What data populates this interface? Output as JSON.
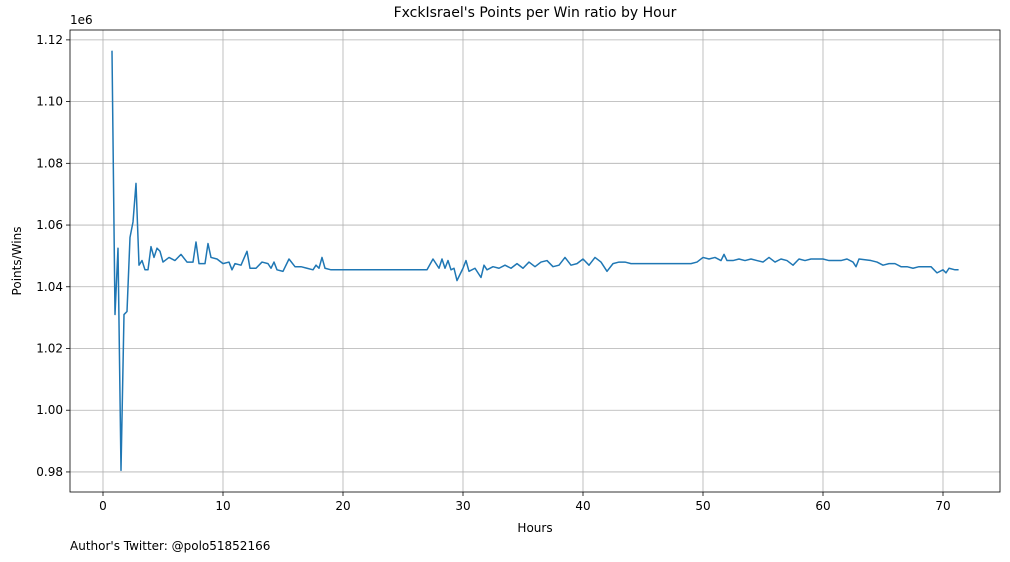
{
  "chart_data": {
    "type": "line",
    "title": "FxckIsrael's Points per Win ratio by Hour",
    "xlabel": "Hours",
    "ylabel": "Points/Wins",
    "y_axis_offset": "1e6",
    "footnote": "Author's Twitter: @polo51852166",
    "grid": true,
    "xlim": [
      -2.75,
      74.75
    ],
    "xticks": [
      0,
      10,
      20,
      30,
      40,
      50,
      60,
      70
    ],
    "ylim": [
      0.9735,
      1.1232
    ],
    "yticks": [
      0.98,
      {
        "value": 1,
        "label": "1.00"
      },
      1.02,
      1.04,
      1.06,
      1.08,
      {
        "value": 1.1,
        "label": "1.10"
      },
      1.12
    ],
    "x": [
      0.75,
      1.0,
      1.25,
      1.5,
      1.75,
      2.0,
      2.25,
      2.5,
      2.75,
      3.0,
      3.25,
      3.5,
      3.75,
      4.0,
      4.25,
      4.5,
      4.75,
      5.0,
      5.5,
      6.0,
      6.5,
      7.0,
      7.5,
      7.75,
      8.0,
      8.5,
      8.75,
      9.0,
      9.5,
      10.0,
      10.5,
      10.75,
      11.0,
      11.5,
      12.0,
      12.25,
      12.75,
      13.25,
      13.75,
      14.0,
      14.25,
      14.5,
      15.0,
      15.5,
      16.0,
      16.5,
      17.0,
      17.5,
      17.75,
      18.0,
      18.25,
      18.5,
      19.0,
      27.0,
      27.5,
      28.0,
      28.25,
      28.5,
      28.75,
      29.0,
      29.25,
      29.5,
      30.0,
      30.25,
      30.5,
      31.0,
      31.5,
      31.75,
      32.0,
      32.5,
      33.0,
      33.5,
      34.0,
      34.5,
      35.0,
      35.5,
      36.0,
      36.5,
      37.0,
      37.5,
      38.0,
      38.5,
      39.0,
      39.5,
      40.0,
      40.5,
      41.0,
      41.5,
      42.0,
      42.5,
      43.0,
      43.5,
      44.0,
      49.0,
      49.5,
      50.0,
      50.5,
      51.0,
      51.5,
      51.75,
      52.0,
      52.5,
      53.0,
      53.5,
      54.0,
      54.5,
      55.0,
      55.5,
      56.0,
      56.5,
      57.0,
      57.5,
      58.0,
      58.5,
      59.0,
      60.0,
      60.5,
      61.0,
      61.5,
      62.0,
      62.5,
      62.75,
      63.0,
      64.0,
      64.5,
      65.0,
      65.5,
      66.0,
      66.5,
      67.0,
      67.5,
      68.0,
      68.5,
      69.0,
      69.5,
      70.0,
      70.25,
      70.5,
      71.0,
      71.3
    ],
    "series": [
      {
        "name": "Points/Wins",
        "color": "#1f77b4",
        "values": [
          1.1165,
          1.031,
          1.0525,
          0.9805,
          1.031,
          1.032,
          1.056,
          1.061,
          1.0735,
          1.047,
          1.0485,
          1.0455,
          1.0455,
          1.053,
          1.0495,
          1.0525,
          1.0515,
          1.048,
          1.0495,
          1.0485,
          1.0505,
          1.048,
          1.048,
          1.0545,
          1.0475,
          1.0475,
          1.054,
          1.0495,
          1.049,
          1.0475,
          1.048,
          1.0455,
          1.0475,
          1.047,
          1.0515,
          1.046,
          1.046,
          1.048,
          1.0475,
          1.046,
          1.048,
          1.0455,
          1.045,
          1.049,
          1.0465,
          1.0465,
          1.046,
          1.0455,
          1.047,
          1.046,
          1.0495,
          1.046,
          1.0455,
          1.0455,
          1.049,
          1.046,
          1.049,
          1.046,
          1.0485,
          1.0455,
          1.046,
          1.042,
          1.046,
          1.0485,
          1.045,
          1.046,
          1.043,
          1.047,
          1.0455,
          1.0465,
          1.046,
          1.047,
          1.046,
          1.0475,
          1.046,
          1.048,
          1.0465,
          1.048,
          1.0485,
          1.0465,
          1.047,
          1.0495,
          1.047,
          1.0475,
          1.049,
          1.047,
          1.0495,
          1.048,
          1.045,
          1.0475,
          1.048,
          1.048,
          1.0475,
          1.0475,
          1.048,
          1.0495,
          1.049,
          1.0495,
          1.0485,
          1.0505,
          1.0485,
          1.0485,
          1.049,
          1.0485,
          1.049,
          1.0485,
          1.048,
          1.0495,
          1.048,
          1.049,
          1.0485,
          1.047,
          1.049,
          1.0485,
          1.049,
          1.049,
          1.0485,
          1.0485,
          1.0485,
          1.049,
          1.048,
          1.0465,
          1.049,
          1.0485,
          1.048,
          1.047,
          1.0475,
          1.0475,
          1.0465,
          1.0465,
          1.046,
          1.0465,
          1.0465,
          1.0465,
          1.0445,
          1.0455,
          1.0445,
          1.046,
          1.0455,
          1.0455
        ]
      }
    ]
  }
}
